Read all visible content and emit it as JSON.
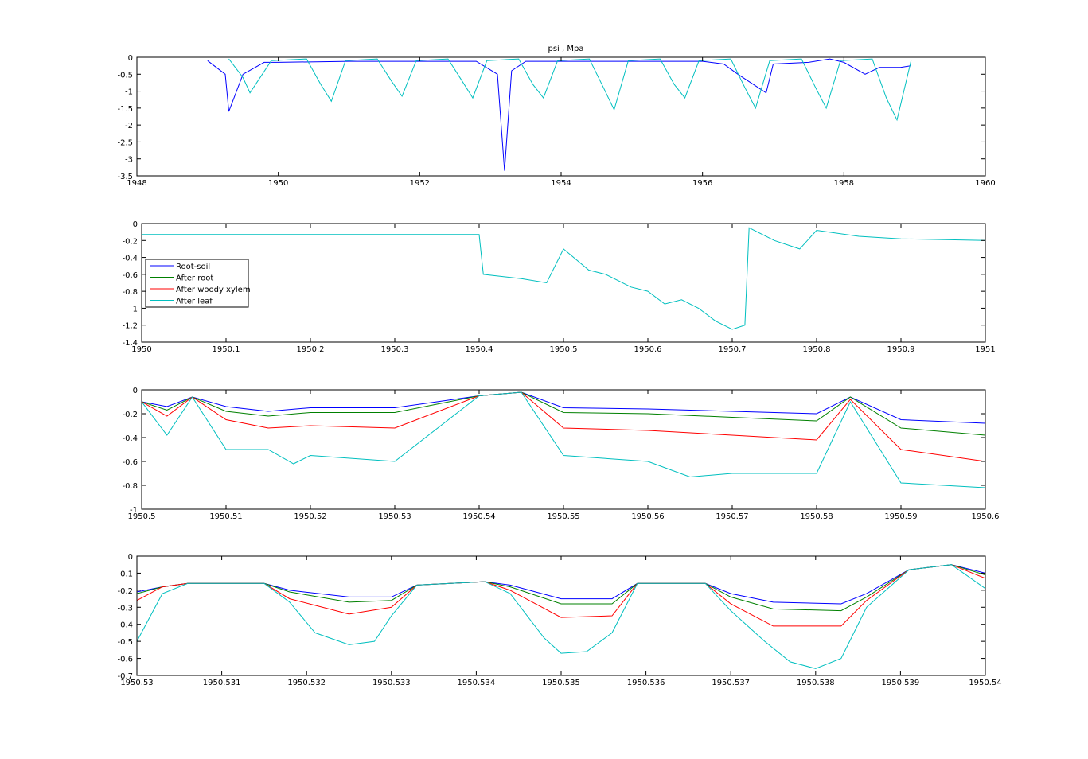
{
  "figure_title": "psi , Mpa",
  "colors": {
    "root_soil": "#0000ff",
    "after_root": "#008000",
    "after_woody_xylem": "#ff0000",
    "after_leaf": "#00bfbf"
  },
  "chart_data": [
    {
      "type": "line",
      "title": "psi , Mpa",
      "xlabel": "",
      "ylabel": "",
      "xlim": [
        1948,
        1960
      ],
      "ylim": [
        -3.5,
        0
      ],
      "xticks": [
        1948,
        1950,
        1952,
        1954,
        1956,
        1958,
        1960
      ],
      "xtick_labels": [
        "1948",
        "1950",
        "1952",
        "1954",
        "1956",
        "1958",
        "1960"
      ],
      "yticks": [
        0,
        -0.5,
        -1,
        -1.5,
        -2,
        -2.5,
        -3,
        -3.5
      ],
      "ytick_labels": [
        "0",
        "-0.5",
        "-1",
        "-1.5",
        "-2",
        "-2.5",
        "-3",
        "-3.5"
      ],
      "grid": false,
      "series": [
        {
          "color": "#0000ff",
          "x": [
            1949.0,
            1949.25,
            1949.3,
            1949.5,
            1949.8,
            1950.0,
            1951.0,
            1952.0,
            1952.8,
            1953.1,
            1953.2,
            1953.3,
            1953.5,
            1954.0,
            1955.0,
            1956.0,
            1956.3,
            1956.5,
            1956.9,
            1957.0,
            1957.5,
            1957.8,
            1958.0,
            1958.3,
            1958.5,
            1958.8,
            1958.95
          ],
          "y": [
            -0.1,
            -0.5,
            -1.6,
            -0.5,
            -0.15,
            -0.15,
            -0.12,
            -0.12,
            -0.12,
            -0.5,
            -3.35,
            -0.4,
            -0.12,
            -0.12,
            -0.12,
            -0.12,
            -0.2,
            -0.5,
            -1.05,
            -0.2,
            -0.15,
            -0.05,
            -0.15,
            -0.5,
            -0.3,
            -0.3,
            -0.25
          ]
        },
        {
          "color": "#00bfbf",
          "x": [
            1949.3,
            1949.5,
            1949.6,
            1949.9,
            1950.4,
            1950.6,
            1950.75,
            1950.95,
            1951.4,
            1951.6,
            1951.75,
            1951.95,
            1952.4,
            1952.6,
            1952.75,
            1952.95,
            1953.4,
            1953.6,
            1953.75,
            1953.95,
            1954.4,
            1954.6,
            1954.75,
            1954.95,
            1955.4,
            1955.6,
            1955.75,
            1955.95,
            1956.4,
            1956.6,
            1956.75,
            1956.95,
            1957.4,
            1957.6,
            1957.75,
            1957.95,
            1958.4,
            1958.6,
            1958.75,
            1958.95
          ],
          "y": [
            -0.05,
            -0.6,
            -1.05,
            -0.1,
            -0.05,
            -0.8,
            -1.3,
            -0.1,
            -0.05,
            -0.7,
            -1.15,
            -0.1,
            -0.05,
            -0.7,
            -1.2,
            -0.1,
            -0.05,
            -0.8,
            -1.2,
            -0.1,
            -0.05,
            -0.9,
            -1.55,
            -0.1,
            -0.05,
            -0.8,
            -1.2,
            -0.1,
            -0.05,
            -0.9,
            -1.5,
            -0.1,
            -0.05,
            -0.9,
            -1.5,
            -0.1,
            -0.05,
            -1.2,
            -1.85,
            -0.1
          ]
        }
      ]
    },
    {
      "type": "line",
      "xlim": [
        1950,
        1951
      ],
      "ylim": [
        -1.4,
        0
      ],
      "xticks": [
        1950,
        1950.1,
        1950.2,
        1950.3,
        1950.4,
        1950.5,
        1950.6,
        1950.7,
        1950.8,
        1950.9,
        1951
      ],
      "xtick_labels": [
        "1950",
        "1950.1",
        "1950.2",
        "1950.3",
        "1950.4",
        "1950.5",
        "1950.6",
        "1950.7",
        "1950.8",
        "1950.9",
        "1951"
      ],
      "yticks": [
        0,
        -0.2,
        -0.4,
        -0.6,
        -0.8,
        -1,
        -1.2,
        -1.4
      ],
      "ytick_labels": [
        "0",
        "-0.2",
        "-0.4",
        "-0.6",
        "-0.8",
        "-1",
        "-1.2",
        "-1.4"
      ],
      "grid": false,
      "legend": {
        "placement": "middle-left",
        "entries": [
          {
            "label": "Root-soil",
            "color": "#0000ff"
          },
          {
            "label": "After root",
            "color": "#008000"
          },
          {
            "label": "After woody xylem",
            "color": "#ff0000"
          },
          {
            "label": "After leaf",
            "color": "#00bfbf"
          }
        ]
      },
      "series": [
        {
          "name": "After leaf",
          "color": "#00bfbf",
          "x": [
            1950.0,
            1950.4,
            1950.405,
            1950.45,
            1950.48,
            1950.5,
            1950.53,
            1950.55,
            1950.58,
            1950.6,
            1950.62,
            1950.64,
            1950.66,
            1950.68,
            1950.7,
            1950.715,
            1950.72,
            1950.75,
            1950.78,
            1950.8,
            1950.85,
            1950.9,
            1951.0
          ],
          "y": [
            -0.13,
            -0.13,
            -0.6,
            -0.65,
            -0.7,
            -0.3,
            -0.55,
            -0.6,
            -0.75,
            -0.8,
            -0.95,
            -0.9,
            -1.0,
            -1.15,
            -1.25,
            -1.2,
            -0.05,
            -0.2,
            -0.3,
            -0.08,
            -0.15,
            -0.18,
            -0.2
          ]
        }
      ]
    },
    {
      "type": "line",
      "xlim": [
        1950.5,
        1950.6
      ],
      "ylim": [
        -1,
        0
      ],
      "xticks": [
        1950.5,
        1950.51,
        1950.52,
        1950.53,
        1950.54,
        1950.55,
        1950.56,
        1950.57,
        1950.58,
        1950.59,
        1950.6
      ],
      "xtick_labels": [
        "1950.5",
        "1950.51",
        "1950.52",
        "1950.53",
        "1950.54",
        "1950.55",
        "1950.56",
        "1950.57",
        "1950.58",
        "1950.59",
        "1950.6"
      ],
      "yticks": [
        0,
        -0.2,
        -0.4,
        -0.6,
        -0.8,
        -1
      ],
      "ytick_labels": [
        "0",
        "-0.2",
        "-0.4",
        "-0.6",
        "-0.8",
        "-1"
      ],
      "grid": false,
      "series": [
        {
          "name": "Root-soil",
          "color": "#0000ff",
          "x": [
            1950.5,
            1950.503,
            1950.506,
            1950.51,
            1950.515,
            1950.52,
            1950.53,
            1950.54,
            1950.545,
            1950.55,
            1950.56,
            1950.57,
            1950.58,
            1950.584,
            1950.59,
            1950.6
          ],
          "y": [
            -0.1,
            -0.14,
            -0.06,
            -0.14,
            -0.18,
            -0.15,
            -0.15,
            -0.05,
            -0.02,
            -0.15,
            -0.16,
            -0.18,
            -0.2,
            -0.06,
            -0.25,
            -0.28
          ]
        },
        {
          "name": "After root",
          "color": "#008000",
          "x": [
            1950.5,
            1950.503,
            1950.506,
            1950.51,
            1950.515,
            1950.52,
            1950.53,
            1950.54,
            1950.545,
            1950.55,
            1950.56,
            1950.57,
            1950.58,
            1950.584,
            1950.59,
            1950.6
          ],
          "y": [
            -0.1,
            -0.17,
            -0.06,
            -0.18,
            -0.22,
            -0.19,
            -0.19,
            -0.05,
            -0.02,
            -0.19,
            -0.2,
            -0.23,
            -0.26,
            -0.06,
            -0.32,
            -0.38
          ]
        },
        {
          "name": "After woody xylem",
          "color": "#ff0000",
          "x": [
            1950.5,
            1950.503,
            1950.506,
            1950.51,
            1950.515,
            1950.52,
            1950.53,
            1950.54,
            1950.545,
            1950.55,
            1950.56,
            1950.57,
            1950.58,
            1950.584,
            1950.59,
            1950.6
          ],
          "y": [
            -0.1,
            -0.22,
            -0.06,
            -0.25,
            -0.32,
            -0.3,
            -0.32,
            -0.05,
            -0.02,
            -0.32,
            -0.34,
            -0.38,
            -0.42,
            -0.08,
            -0.5,
            -0.6
          ]
        },
        {
          "name": "After leaf",
          "color": "#00bfbf",
          "x": [
            1950.5,
            1950.503,
            1950.506,
            1950.51,
            1950.515,
            1950.518,
            1950.52,
            1950.53,
            1950.54,
            1950.545,
            1950.55,
            1950.56,
            1950.565,
            1950.57,
            1950.58,
            1950.584,
            1950.59,
            1950.6
          ],
          "y": [
            -0.1,
            -0.38,
            -0.06,
            -0.5,
            -0.5,
            -0.62,
            -0.55,
            -0.6,
            -0.05,
            -0.02,
            -0.55,
            -0.6,
            -0.73,
            -0.7,
            -0.7,
            -0.1,
            -0.78,
            -0.82
          ]
        }
      ]
    },
    {
      "type": "line",
      "xlim": [
        1950.53,
        1950.54
      ],
      "ylim": [
        -0.7,
        0
      ],
      "xticks": [
        1950.53,
        1950.531,
        1950.532,
        1950.533,
        1950.534,
        1950.535,
        1950.536,
        1950.537,
        1950.538,
        1950.539,
        1950.54
      ],
      "xtick_labels": [
        "1950.53",
        "1950.531",
        "1950.532",
        "1950.533",
        "1950.534",
        "1950.535",
        "1950.536",
        "1950.537",
        "1950.538",
        "1950.539",
        "1950.54"
      ],
      "yticks": [
        0,
        -0.1,
        -0.2,
        -0.3,
        -0.4,
        -0.5,
        -0.6,
        -0.7
      ],
      "ytick_labels": [
        "0",
        "-0.1",
        "-0.2",
        "-0.3",
        "-0.4",
        "-0.5",
        "-0.6",
        "-0.7"
      ],
      "grid": false,
      "series": [
        {
          "name": "Root-soil",
          "color": "#0000ff",
          "x": [
            1950.53,
            1950.5303,
            1950.5306,
            1950.5315,
            1950.5318,
            1950.5325,
            1950.533,
            1950.5333,
            1950.5341,
            1950.5344,
            1950.535,
            1950.5356,
            1950.5359,
            1950.5367,
            1950.537,
            1950.5375,
            1950.5383,
            1950.5386,
            1950.5391,
            1950.5396,
            1950.54
          ],
          "y": [
            -0.21,
            -0.18,
            -0.16,
            -0.16,
            -0.2,
            -0.24,
            -0.24,
            -0.17,
            -0.15,
            -0.17,
            -0.25,
            -0.25,
            -0.16,
            -0.16,
            -0.22,
            -0.27,
            -0.28,
            -0.22,
            -0.08,
            -0.05,
            -0.1
          ]
        },
        {
          "name": "After root",
          "color": "#008000",
          "x": [
            1950.53,
            1950.5303,
            1950.5306,
            1950.5315,
            1950.5318,
            1950.5325,
            1950.533,
            1950.5333,
            1950.5341,
            1950.5344,
            1950.535,
            1950.5356,
            1950.5359,
            1950.5367,
            1950.537,
            1950.5375,
            1950.5383,
            1950.5386,
            1950.5391,
            1950.5396,
            1950.54
          ],
          "y": [
            -0.22,
            -0.18,
            -0.16,
            -0.16,
            -0.21,
            -0.27,
            -0.26,
            -0.17,
            -0.15,
            -0.18,
            -0.28,
            -0.28,
            -0.16,
            -0.16,
            -0.24,
            -0.31,
            -0.32,
            -0.24,
            -0.08,
            -0.05,
            -0.11
          ]
        },
        {
          "name": "After woody xylem",
          "color": "#ff0000",
          "x": [
            1950.53,
            1950.5303,
            1950.5306,
            1950.5315,
            1950.5318,
            1950.5325,
            1950.533,
            1950.5333,
            1950.5341,
            1950.5344,
            1950.535,
            1950.5356,
            1950.5359,
            1950.5367,
            1950.537,
            1950.5375,
            1950.5383,
            1950.5386,
            1950.5391,
            1950.5396,
            1950.54
          ],
          "y": [
            -0.26,
            -0.18,
            -0.16,
            -0.16,
            -0.25,
            -0.34,
            -0.3,
            -0.17,
            -0.15,
            -0.2,
            -0.36,
            -0.35,
            -0.16,
            -0.16,
            -0.28,
            -0.41,
            -0.41,
            -0.26,
            -0.08,
            -0.05,
            -0.13
          ]
        },
        {
          "name": "After leaf",
          "color": "#00bfbf",
          "x": [
            1950.53,
            1950.5303,
            1950.5306,
            1950.5315,
            1950.5318,
            1950.5321,
            1950.5325,
            1950.5328,
            1950.533,
            1950.5333,
            1950.5341,
            1950.5344,
            1950.5348,
            1950.535,
            1950.5353,
            1950.5356,
            1950.5359,
            1950.5367,
            1950.537,
            1950.5374,
            1950.5377,
            1950.538,
            1950.5383,
            1950.5386,
            1950.5391,
            1950.5396,
            1950.54
          ],
          "y": [
            -0.5,
            -0.22,
            -0.16,
            -0.16,
            -0.27,
            -0.45,
            -0.52,
            -0.5,
            -0.35,
            -0.17,
            -0.15,
            -0.22,
            -0.48,
            -0.57,
            -0.56,
            -0.45,
            -0.16,
            -0.16,
            -0.32,
            -0.5,
            -0.62,
            -0.66,
            -0.6,
            -0.3,
            -0.08,
            -0.05,
            -0.19
          ]
        }
      ]
    }
  ]
}
